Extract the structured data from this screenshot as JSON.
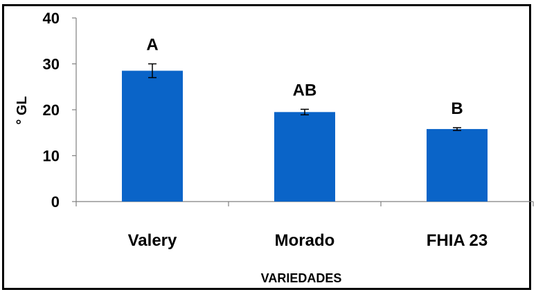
{
  "chart_data": {
    "type": "bar",
    "categories": [
      "Valery",
      "Morado",
      "FHIA 23"
    ],
    "values": [
      28.5,
      19.5,
      15.8
    ],
    "errors": [
      1.5,
      0.6,
      0.3
    ],
    "significance_labels": [
      "A",
      "AB",
      "B"
    ],
    "xlabel": "VARIEDADES",
    "ylabel": "° GL",
    "ylim": [
      0,
      40
    ],
    "yticks": [
      0,
      10,
      20,
      30,
      40
    ],
    "grid": false,
    "legend": "none",
    "bar_color": "#0a64c8"
  }
}
